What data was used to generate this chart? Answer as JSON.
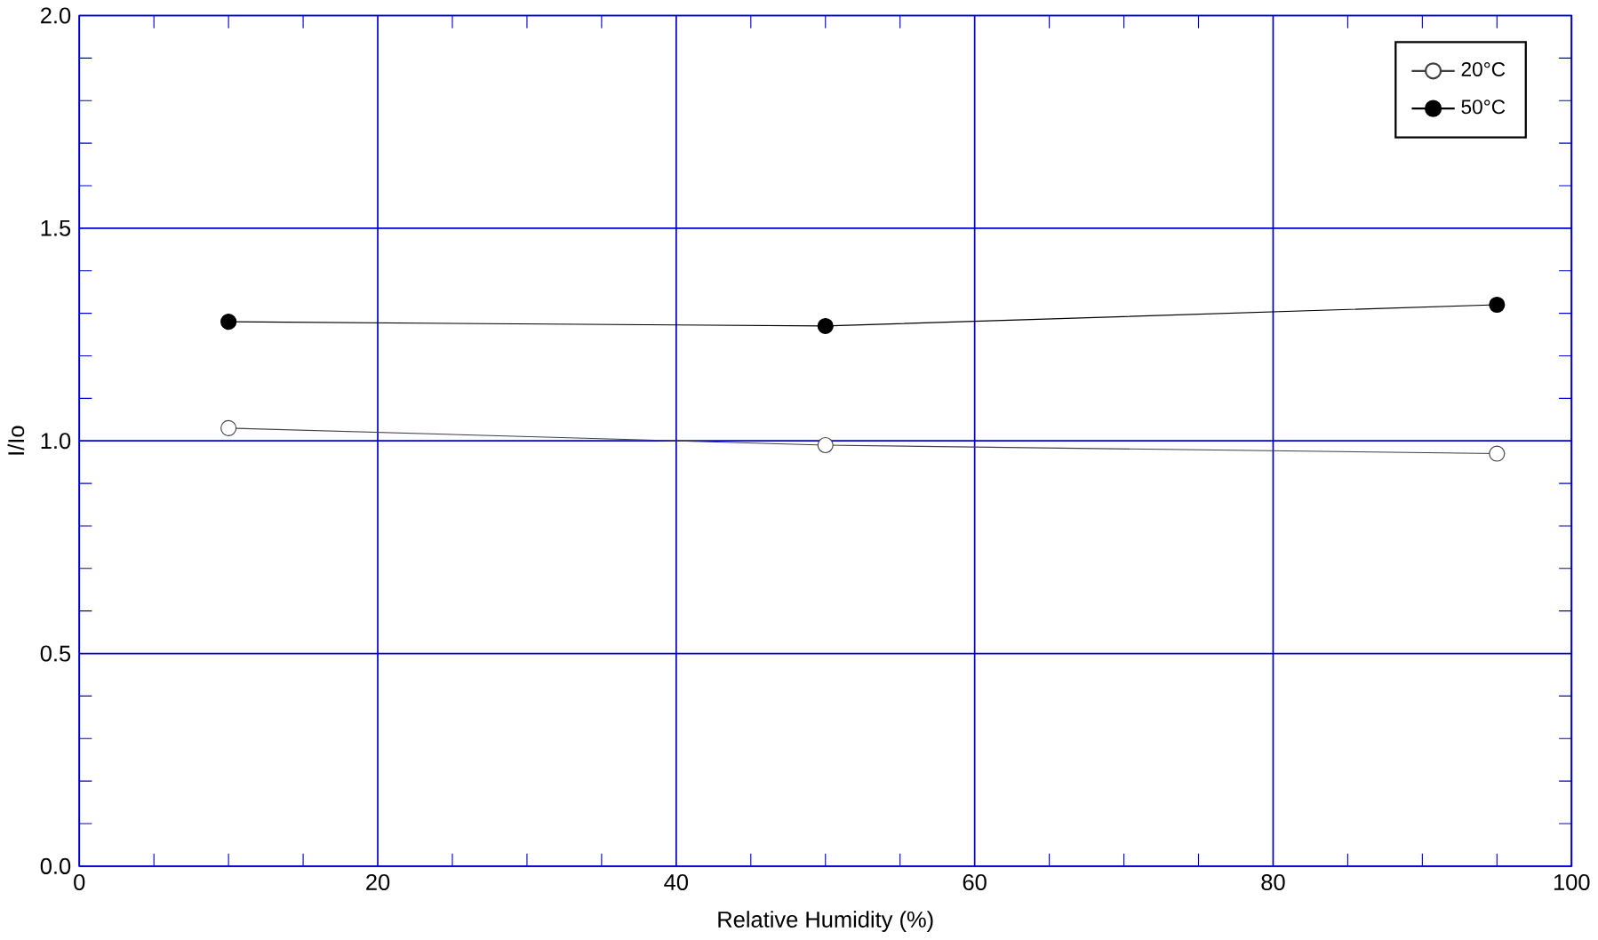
{
  "chart_data": {
    "type": "line",
    "xlabel": "Relative Humidity (%)",
    "ylabel": "I/Io",
    "x": [
      10,
      50,
      95
    ],
    "series": [
      {
        "name": "20°C",
        "color": "#404040",
        "values": [
          1.03,
          0.99,
          0.97
        ]
      },
      {
        "name": "50°C",
        "color": "#000000",
        "values": [
          1.28,
          1.27,
          1.32
        ]
      }
    ],
    "xlim": [
      0,
      100
    ],
    "xticks": [
      0,
      20,
      40,
      60,
      80,
      100
    ],
    "ylim": [
      0,
      2
    ],
    "yticks": [
      {
        "value": 0,
        "label": "0.0"
      },
      {
        "value": 0.5,
        "label": "0.5"
      },
      {
        "value": 1,
        "label": "1.0"
      },
      {
        "value": 1.5,
        "label": "1.5"
      },
      {
        "value": 2,
        "label": "2.0"
      }
    ],
    "grid": true,
    "legend": "top right",
    "marker": "circle",
    "line_style": "solid"
  }
}
